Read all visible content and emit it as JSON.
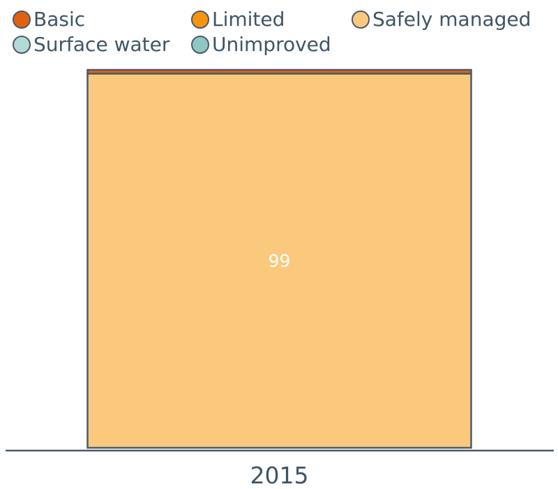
{
  "legend": {
    "items": [
      {
        "label": "Basic",
        "color": "#e0620f"
      },
      {
        "label": "Limited",
        "color": "#f7940f"
      },
      {
        "label": "Safely managed",
        "color": "#fac97e"
      },
      {
        "label": "Surface water",
        "color": "#b4dad8"
      },
      {
        "label": "Unimproved",
        "color": "#8dc8c6"
      }
    ]
  },
  "chart_data": {
    "type": "bar",
    "stacked": true,
    "categories": [
      "2015"
    ],
    "series": [
      {
        "name": "Safely managed",
        "values": [
          99
        ],
        "color": "#fac97e",
        "show_label": true
      },
      {
        "name": "Basic",
        "values": [
          1
        ],
        "color": "#e0620f",
        "show_label": false
      }
    ],
    "ylim": [
      0,
      100
    ],
    "xlabel": "",
    "ylabel": "",
    "grid": false,
    "legend_position": "top",
    "data_label_color": "#ffffff",
    "outline_color": "#4a5b68"
  }
}
